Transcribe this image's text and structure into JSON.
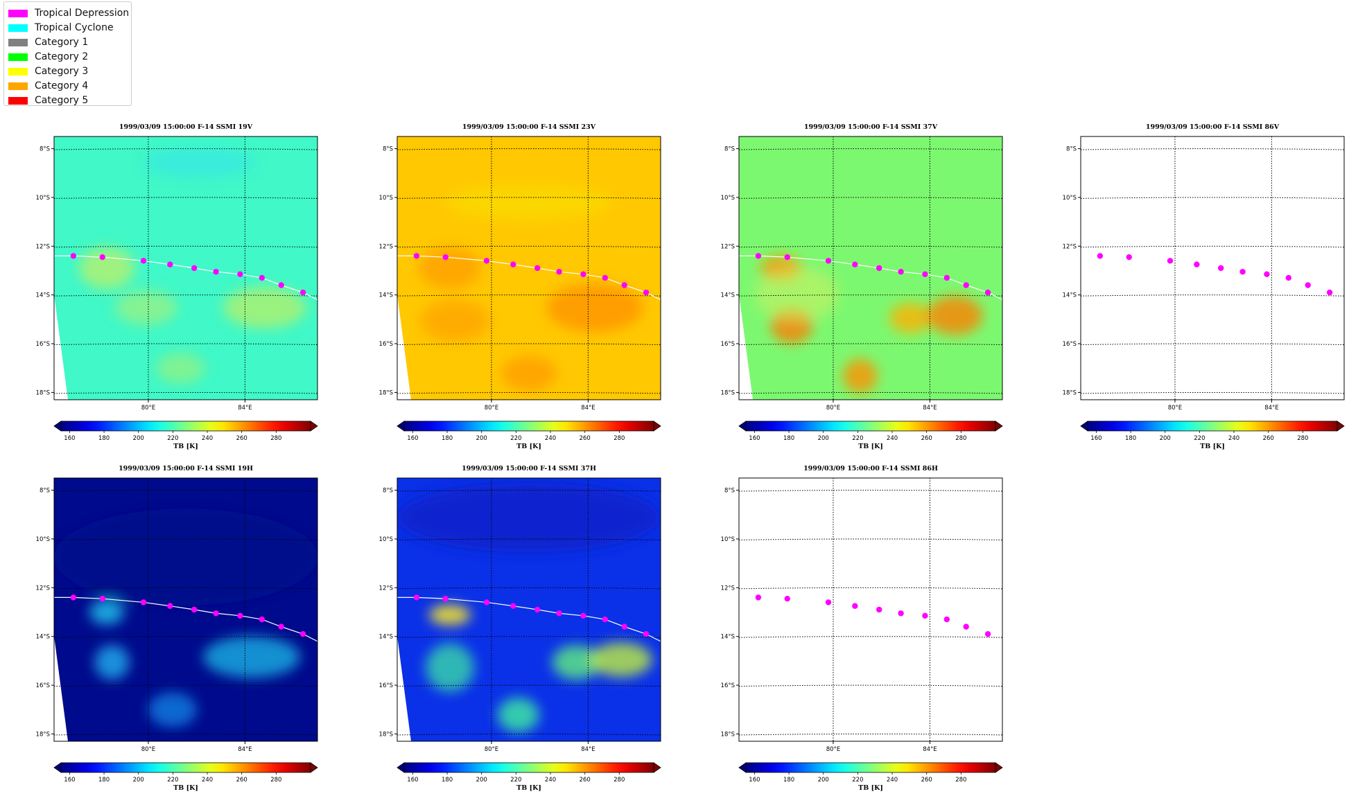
{
  "legend": {
    "items": [
      {
        "label": "Tropical Depression",
        "color": "#ff00ff"
      },
      {
        "label": "Tropical Cyclone",
        "color": "#00ffff"
      },
      {
        "label": "Category 1",
        "color": "#808080"
      },
      {
        "label": "Category 2",
        "color": "#00ff00"
      },
      {
        "label": "Category 3",
        "color": "#ffff00"
      },
      {
        "label": "Category 4",
        "color": "#ffa500"
      },
      {
        "label": "Category 5",
        "color": "#ff0000"
      }
    ]
  },
  "chart_data": [
    {
      "type": "heatmap",
      "title": "1999/03/09 15:00:00  F-14 SSMI 19V",
      "base_color": "#40f8c8",
      "has_data": true,
      "colorbar": {
        "label": "TB [K]",
        "ticks": [
          160,
          180,
          200,
          220,
          240,
          260,
          280
        ]
      },
      "yticks": [
        "8°S",
        "10°S",
        "12°S",
        "14°S",
        "16°S",
        "18°S"
      ],
      "xticks": [
        "80°E",
        "84°E"
      ],
      "track": {
        "lon": [
          76.9,
          78.1,
          79.8,
          80.9,
          81.9,
          82.8,
          83.8,
          84.7,
          85.5,
          86.4
        ],
        "lat": [
          -12.4,
          -12.45,
          -12.6,
          -12.75,
          -12.9,
          -13.05,
          -13.15,
          -13.3,
          -13.6,
          -13.9
        ]
      }
    },
    {
      "type": "heatmap",
      "title": "1999/03/09 15:00:00  F-14 SSMI 23V",
      "base_color": "#ffc800",
      "has_data": true,
      "colorbar": {
        "label": "TB [K]",
        "ticks": [
          160,
          180,
          200,
          220,
          240,
          260,
          280
        ]
      },
      "yticks": [
        "8°S",
        "10°S",
        "12°S",
        "14°S",
        "16°S",
        "18°S"
      ],
      "xticks": [
        "80°E",
        "84°E"
      ],
      "track": {
        "lon": [
          76.9,
          78.1,
          79.8,
          80.9,
          81.9,
          82.8,
          83.8,
          84.7,
          85.5,
          86.4
        ],
        "lat": [
          -12.4,
          -12.45,
          -12.6,
          -12.75,
          -12.9,
          -13.05,
          -13.15,
          -13.3,
          -13.6,
          -13.9
        ]
      }
    },
    {
      "type": "heatmap",
      "title": "1999/03/09 15:00:00  F-14 SSMI 37V",
      "base_color": "#7cf870",
      "has_data": true,
      "colorbar": {
        "label": "TB [K]",
        "ticks": [
          160,
          180,
          200,
          220,
          240,
          260,
          280
        ]
      },
      "yticks": [
        "8°S",
        "10°S",
        "12°S",
        "14°S",
        "16°S",
        "18°S"
      ],
      "xticks": [
        "80°E",
        "84°E"
      ],
      "track": {
        "lon": [
          76.9,
          78.1,
          79.8,
          80.9,
          81.9,
          82.8,
          83.8,
          84.7,
          85.5,
          86.4
        ],
        "lat": [
          -12.4,
          -12.45,
          -12.6,
          -12.75,
          -12.9,
          -13.05,
          -13.15,
          -13.3,
          -13.6,
          -13.9
        ]
      }
    },
    {
      "type": "heatmap",
      "title": "1999/03/09 15:00:00  F-14 SSMI 86V",
      "base_color": "#ffffff",
      "has_data": false,
      "colorbar": {
        "label": "TB [K]",
        "ticks": [
          160,
          180,
          200,
          220,
          240,
          260,
          280
        ]
      },
      "yticks": [
        "8°S",
        "10°S",
        "12°S",
        "14°S",
        "16°S",
        "18°S"
      ],
      "xticks": [
        "80°E",
        "84°E"
      ],
      "track": {
        "lon": [
          76.9,
          78.1,
          79.8,
          80.9,
          81.9,
          82.8,
          83.8,
          84.7,
          85.5,
          86.4
        ],
        "lat": [
          -12.4,
          -12.45,
          -12.6,
          -12.75,
          -12.9,
          -13.05,
          -13.15,
          -13.3,
          -13.6,
          -13.9
        ]
      }
    },
    {
      "type": "heatmap",
      "title": "1999/03/09 15:00:00  F-14 SSMI 19H",
      "base_color": "#000a8c",
      "has_data": true,
      "colorbar": {
        "label": "TB [K]",
        "ticks": [
          160,
          180,
          200,
          220,
          240,
          260,
          280
        ]
      },
      "yticks": [
        "8°S",
        "10°S",
        "12°S",
        "14°S",
        "16°S",
        "18°S"
      ],
      "xticks": [
        "80°E",
        "84°E"
      ],
      "track": {
        "lon": [
          76.9,
          78.1,
          79.8,
          80.9,
          81.9,
          82.8,
          83.8,
          84.7,
          85.5,
          86.4
        ],
        "lat": [
          -12.4,
          -12.45,
          -12.6,
          -12.75,
          -12.9,
          -13.05,
          -13.15,
          -13.3,
          -13.6,
          -13.9
        ]
      }
    },
    {
      "type": "heatmap",
      "title": "1999/03/09 15:00:00  F-14 SSMI 37H",
      "base_color": "#0a30e8",
      "has_data": true,
      "colorbar": {
        "label": "TB [K]",
        "ticks": [
          160,
          180,
          200,
          220,
          240,
          260,
          280
        ]
      },
      "yticks": [
        "8°S",
        "10°S",
        "12°S",
        "14°S",
        "16°S",
        "18°S"
      ],
      "xticks": [
        "80°E",
        "84°E"
      ],
      "track": {
        "lon": [
          76.9,
          78.1,
          79.8,
          80.9,
          81.9,
          82.8,
          83.8,
          84.7,
          85.5,
          86.4
        ],
        "lat": [
          -12.4,
          -12.45,
          -12.6,
          -12.75,
          -12.9,
          -13.05,
          -13.15,
          -13.3,
          -13.6,
          -13.9
        ]
      }
    },
    {
      "type": "heatmap",
      "title": "1999/03/09 15:00:00  F-14 SSMI 86H",
      "base_color": "#ffffff",
      "has_data": false,
      "colorbar": {
        "label": "TB [K]",
        "ticks": [
          160,
          180,
          200,
          220,
          240,
          260,
          280
        ]
      },
      "yticks": [
        "8°S",
        "10°S",
        "12°S",
        "14°S",
        "16°S",
        "18°S"
      ],
      "xticks": [
        "80°E",
        "84°E"
      ],
      "track": {
        "lon": [
          76.9,
          78.1,
          79.8,
          80.9,
          81.9,
          82.8,
          83.8,
          84.7,
          85.5,
          86.4
        ],
        "lat": [
          -12.4,
          -12.45,
          -12.6,
          -12.75,
          -12.9,
          -13.05,
          -13.15,
          -13.3,
          -13.6,
          -13.9
        ]
      }
    }
  ]
}
